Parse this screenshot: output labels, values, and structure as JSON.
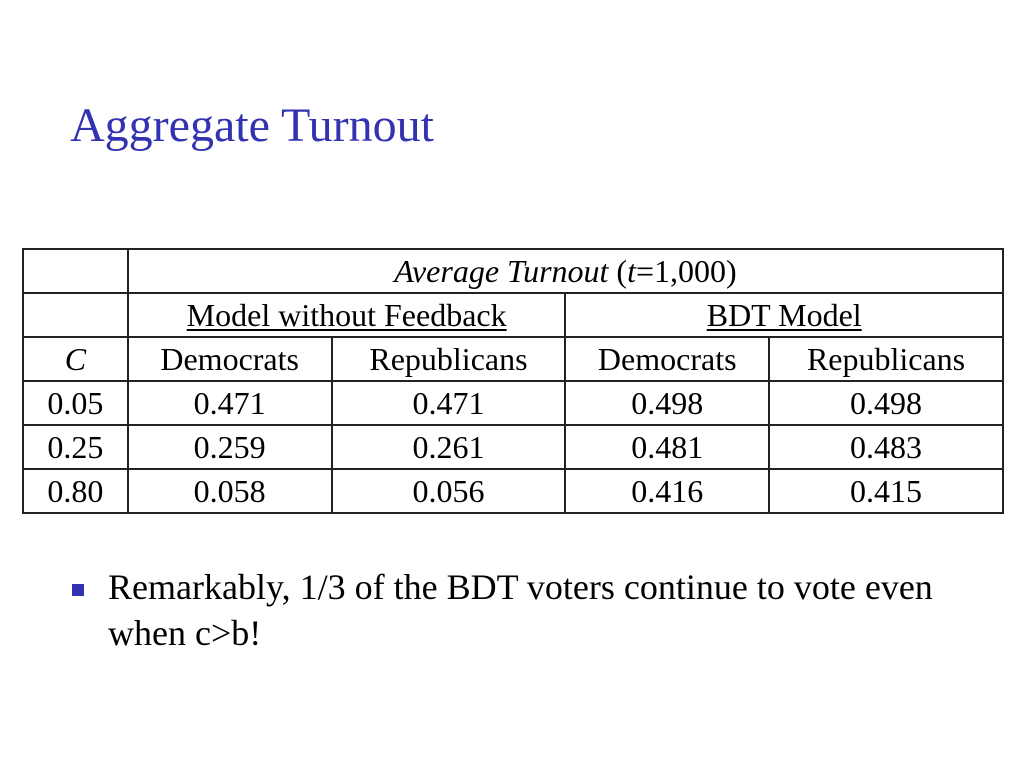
{
  "slide": {
    "title": "Aggregate Turnout"
  },
  "table": {
    "header_main": {
      "italic_text": "Average Turnout",
      "paren_open": "(",
      "t_var": "t",
      "t_value": "=1,000)"
    },
    "groups": [
      "Model without Feedback",
      "BDT Model"
    ],
    "c_label": "C",
    "columns": [
      "Democrats",
      "Republicans",
      "Democrats",
      "Republicans"
    ],
    "rows": [
      [
        "0.05",
        "0.471",
        "0.471",
        "0.498",
        "0.498"
      ],
      [
        "0.25",
        "0.259",
        "0.261",
        "0.481",
        "0.483"
      ],
      [
        "0.80",
        "0.058",
        "0.056",
        "0.416",
        "0.415"
      ]
    ]
  },
  "bullets": [
    "Remarkably, 1/3 of the BDT voters continue to vote even when c>b!"
  ],
  "colors": {
    "title": "#3333b2",
    "bullet": "#3333b2",
    "border": "#222222"
  }
}
